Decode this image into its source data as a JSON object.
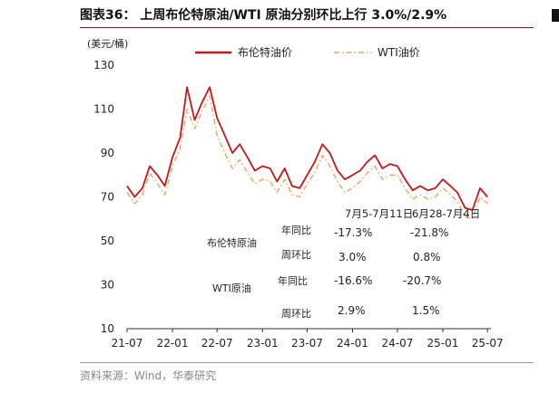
{
  "page": {
    "title": "图表36： 上周布伦特原油/WTI 原油分别环比上行 3.0%/2.9%",
    "source": "资料来源：Wind，华泰研究"
  },
  "colors": {
    "brent": "#c0191c",
    "wti": "#f0a35e",
    "axis": "#333333",
    "title_rule": "#7a1a1a"
  },
  "chart_data": {
    "type": "line",
    "unit_label": "(美元/桶)",
    "ylim": [
      10,
      130
    ],
    "yticks": [
      10,
      30,
      50,
      70,
      90,
      110,
      130
    ],
    "xticks": [
      "21-07",
      "22-01",
      "22-07",
      "23-01",
      "23-07",
      "24-01",
      "24-07",
      "25-01",
      "25-07"
    ],
    "grid": false,
    "legend_position": "top-center",
    "series": [
      {
        "name": "布伦特油价",
        "style": "solid",
        "color": "#c0191c",
        "x": [
          "2021-07",
          "2021-08",
          "2021-09",
          "2021-10",
          "2021-11",
          "2021-12",
          "2022-01",
          "2022-02",
          "2022-03",
          "2022-04",
          "2022-05",
          "2022-06",
          "2022-07",
          "2022-08",
          "2022-09",
          "2022-10",
          "2022-11",
          "2022-12",
          "2023-01",
          "2023-02",
          "2023-03",
          "2023-04",
          "2023-05",
          "2023-06",
          "2023-07",
          "2023-08",
          "2023-09",
          "2023-10",
          "2023-11",
          "2023-12",
          "2024-01",
          "2024-02",
          "2024-03",
          "2024-04",
          "2024-05",
          "2024-06",
          "2024-07",
          "2024-08",
          "2024-09",
          "2024-10",
          "2024-11",
          "2024-12",
          "2025-01",
          "2025-02",
          "2025-03",
          "2025-04",
          "2025-05",
          "2025-06",
          "2025-07"
        ],
        "y": [
          75,
          70,
          74,
          84,
          80,
          75,
          88,
          97,
          120,
          105,
          113,
          120,
          106,
          98,
          90,
          94,
          88,
          82,
          84,
          83,
          77,
          83,
          75,
          74,
          80,
          86,
          94,
          90,
          82,
          78,
          80,
          82,
          86,
          89,
          83,
          85,
          84,
          78,
          73,
          75,
          73,
          74,
          78,
          75,
          72,
          65,
          64,
          74,
          70
        ]
      },
      {
        "name": "WTI油价",
        "style": "dashdot",
        "color": "#f0a35e",
        "x": [
          "2021-07",
          "2021-08",
          "2021-09",
          "2021-10",
          "2021-11",
          "2021-12",
          "2022-01",
          "2022-02",
          "2022-03",
          "2022-04",
          "2022-05",
          "2022-06",
          "2022-07",
          "2022-08",
          "2022-09",
          "2022-10",
          "2022-11",
          "2022-12",
          "2023-01",
          "2023-02",
          "2023-03",
          "2023-04",
          "2023-05",
          "2023-06",
          "2023-07",
          "2023-08",
          "2023-09",
          "2023-10",
          "2023-11",
          "2023-12",
          "2024-01",
          "2024-02",
          "2024-03",
          "2024-04",
          "2024-05",
          "2024-06",
          "2024-07",
          "2024-08",
          "2024-09",
          "2024-10",
          "2024-11",
          "2024-12",
          "2025-01",
          "2025-02",
          "2025-03",
          "2025-04",
          "2025-05",
          "2025-06",
          "2025-07"
        ],
        "y": [
          72,
          67,
          71,
          81,
          76,
          71,
          84,
          92,
          110,
          101,
          109,
          116,
          98,
          90,
          83,
          87,
          81,
          76,
          78,
          77,
          72,
          78,
          71,
          70,
          76,
          81,
          89,
          84,
          77,
          72,
          74,
          77,
          81,
          84,
          78,
          80,
          80,
          74,
          69,
          71,
          69,
          70,
          74,
          71,
          68,
          61,
          60,
          70,
          67
        ]
      }
    ],
    "table": {
      "headers": [
        "7月5-7月11日",
        "6月28-7月4日"
      ],
      "rows": [
        {
          "group": "布伦特原油",
          "metric": "年同比",
          "values": [
            "-17.3%",
            "-21.8%"
          ]
        },
        {
          "group": "",
          "metric": "周环比",
          "values": [
            "3.0%",
            "0.8%"
          ]
        },
        {
          "group": "WTI原油",
          "metric": "年同比",
          "values": [
            "-16.6%",
            "-20.7%"
          ]
        },
        {
          "group": "",
          "metric": "周环比",
          "values": [
            "2.9%",
            "1.5%"
          ]
        }
      ]
    }
  }
}
